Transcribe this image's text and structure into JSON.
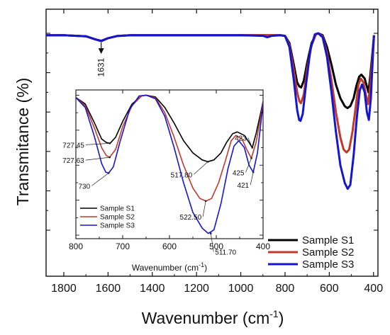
{
  "chart_data": [
    {
      "type": "line",
      "xlabel_main": "Wavenumber (cm",
      "xlabel_sup": "-1",
      "xlabel_close": ")",
      "ylabel": "Transmitance (%)",
      "xlim": [
        1880,
        380
      ],
      "ylim": [
        0,
        100
      ],
      "x_reversed": true,
      "yticks_labeled": false,
      "xticks": [
        1800,
        1600,
        1400,
        1200,
        1000,
        800,
        600,
        400
      ],
      "x_tick_labels": [
        "1800",
        "1600",
        "1400",
        "1200",
        "1000",
        "800",
        "600",
        "400"
      ],
      "legend_position": "bottom-right",
      "annotations": [
        {
          "text": "1631",
          "x": 1631,
          "y": 96,
          "arrow": true
        }
      ],
      "series": [
        {
          "name": "Sample S1",
          "color": "#000000",
          "points": [
            [
              1880,
              99
            ],
            [
              1800,
              99
            ],
            [
              1700,
              98.5
            ],
            [
              1660,
              97
            ],
            [
              1631,
              96.2
            ],
            [
              1600,
              97.5
            ],
            [
              1560,
              98.6
            ],
            [
              1500,
              99
            ],
            [
              1400,
              99
            ],
            [
              1300,
              99
            ],
            [
              1200,
              99
            ],
            [
              1100,
              99
            ],
            [
              1000,
              99
            ],
            [
              900,
              99
            ],
            [
              820,
              99
            ],
            [
              800,
              98.7
            ],
            [
              780,
              95
            ],
            [
              760,
              84
            ],
            [
              745,
              75
            ],
            [
              735,
              73
            ],
            [
              727,
              72.5
            ],
            [
              715,
              76
            ],
            [
              700,
              85
            ],
            [
              680,
              95
            ],
            [
              660,
              99.5
            ],
            [
              650,
              100
            ],
            [
              630,
              99
            ],
            [
              610,
              93
            ],
            [
              590,
              84
            ],
            [
              570,
              74
            ],
            [
              550,
              67
            ],
            [
              530,
              63
            ],
            [
              518,
              62
            ],
            [
              505,
              63
            ],
            [
              490,
              67
            ],
            [
              478,
              73
            ],
            [
              465,
              78
            ],
            [
              455,
              79
            ],
            [
              440,
              77
            ],
            [
              430,
              73
            ],
            [
              423,
              70
            ],
            [
              415,
              78
            ],
            [
              405,
              90
            ],
            [
              398,
              99
            ]
          ]
        },
        {
          "name": "Sample S2",
          "color": "#c0392b",
          "points": [
            [
              1880,
              99
            ],
            [
              1800,
              99
            ],
            [
              1700,
              98.5
            ],
            [
              1660,
              97
            ],
            [
              1631,
              96
            ],
            [
              1600,
              97.5
            ],
            [
              1560,
              98.6
            ],
            [
              1500,
              99
            ],
            [
              1400,
              99
            ],
            [
              1300,
              99
            ],
            [
              1200,
              99
            ],
            [
              1100,
              99
            ],
            [
              1000,
              99
            ],
            [
              900,
              99
            ],
            [
              820,
              99
            ],
            [
              800,
              98.7
            ],
            [
              780,
              94
            ],
            [
              760,
              81
            ],
            [
              745,
              70
            ],
            [
              735,
              65.5
            ],
            [
              728,
              64.5
            ],
            [
              715,
              69
            ],
            [
              700,
              82
            ],
            [
              680,
              94
            ],
            [
              660,
              99.5
            ],
            [
              650,
              100
            ],
            [
              630,
              98.5
            ],
            [
              610,
              90
            ],
            [
              590,
              76
            ],
            [
              570,
              60
            ],
            [
              550,
              47
            ],
            [
              535,
              41
            ],
            [
              522,
              39.5
            ],
            [
              510,
              41
            ],
            [
              495,
              50
            ],
            [
              480,
              63
            ],
            [
              468,
              74
            ],
            [
              458,
              77
            ],
            [
              445,
              75
            ],
            [
              435,
              69
            ],
            [
              425,
              64
            ],
            [
              415,
              73
            ],
            [
              405,
              88
            ],
            [
              398,
              99
            ]
          ]
        },
        {
          "name": "Sample S3",
          "color": "#1515d0",
          "points": [
            [
              1880,
              99
            ],
            [
              1800,
              99
            ],
            [
              1700,
              98.5
            ],
            [
              1660,
              97
            ],
            [
              1631,
              96
            ],
            [
              1600,
              97.5
            ],
            [
              1560,
              98.6
            ],
            [
              1500,
              99
            ],
            [
              1400,
              99
            ],
            [
              1300,
              99
            ],
            [
              1200,
              99
            ],
            [
              1100,
              99
            ],
            [
              1000,
              99
            ],
            [
              900,
              98.7
            ],
            [
              880,
              98
            ],
            [
              860,
              98.7
            ],
            [
              820,
              99
            ],
            [
              800,
              98.6
            ],
            [
              780,
              93
            ],
            [
              760,
              76
            ],
            [
              745,
              61
            ],
            [
              736,
              56
            ],
            [
              730,
              55.5
            ],
            [
              720,
              59
            ],
            [
              705,
              74
            ],
            [
              685,
              92
            ],
            [
              665,
              99.5
            ],
            [
              650,
              100
            ],
            [
              630,
              98
            ],
            [
              610,
              88
            ],
            [
              590,
              70
            ],
            [
              570,
              50
            ],
            [
              550,
              33
            ],
            [
              530,
              24
            ],
            [
              517,
              21
            ],
            [
              505,
              23
            ],
            [
              490,
              38
            ],
            [
              475,
              58
            ],
            [
              462,
              71
            ],
            [
              452,
              74
            ],
            [
              440,
              70
            ],
            [
              430,
              60
            ],
            [
              421,
              56
            ],
            [
              412,
              67
            ],
            [
              404,
              86
            ],
            [
              398,
              99
            ]
          ]
        }
      ]
    },
    {
      "type": "line",
      "title": "inset",
      "xlabel_main": "Wavenumber (cm",
      "xlabel_sup": "-1",
      "xlabel_close": ")",
      "xlim": [
        800,
        400
      ],
      "ylim": [
        18,
        103
      ],
      "x_reversed": true,
      "xticks": [
        800,
        700,
        600,
        500,
        400
      ],
      "x_tick_labels": [
        "800",
        "700",
        "600",
        "500",
        "400"
      ],
      "legend_position": "bottom-left",
      "legend": [
        "Sample S1",
        "Sample S2",
        "Sample S3"
      ],
      "annotations": [
        {
          "text": "727.45",
          "x": 727.45,
          "y": 72.5
        },
        {
          "text": "727.63",
          "x": 727.63,
          "y": 64.5
        },
        {
          "text": "730",
          "x": 730,
          "y": 55.5
        },
        {
          "text": "517.80",
          "x": 517.8,
          "y": 62
        },
        {
          "text": "522.50",
          "x": 522.5,
          "y": 39.5
        },
        {
          "text": "511.70",
          "x": 511.7,
          "y": 21
        },
        {
          "text": "423",
          "x": 423,
          "y": 70
        },
        {
          "text": "425",
          "x": 425,
          "y": 64
        },
        {
          "text": "421",
          "x": 421,
          "y": 56
        }
      ]
    }
  ]
}
